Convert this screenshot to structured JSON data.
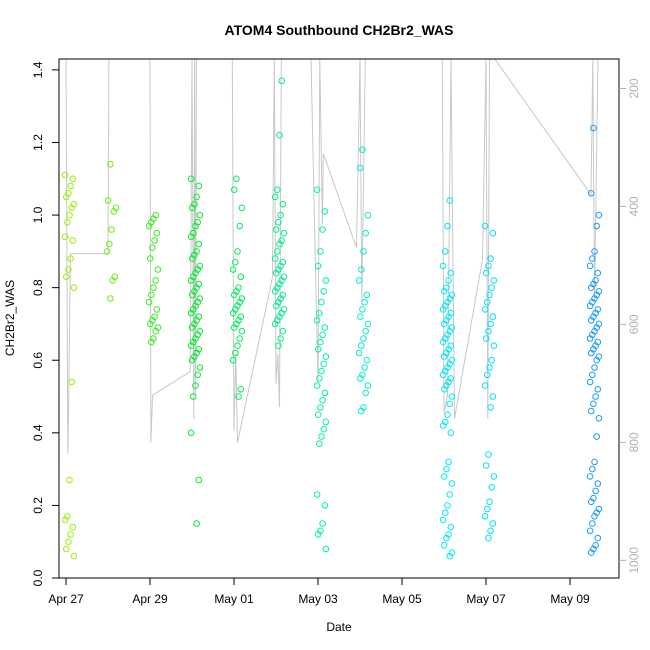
{
  "chart_data": {
    "type": "scatter",
    "title": "ATOM4 Southbound CH2Br2_WAS",
    "xlabel": "Date",
    "ylabel": "CH2Br2_WAS",
    "ylim": [
      0,
      1.43
    ],
    "xlim": [
      "2018-04-26T20:00",
      "2018-05-10T04:00"
    ],
    "x_ticks": [
      {
        "date": "2018-04-27",
        "label": "Apr 27"
      },
      {
        "date": "2018-04-29",
        "label": "Apr 29"
      },
      {
        "date": "2018-05-01",
        "label": "May 01"
      },
      {
        "date": "2018-05-03",
        "label": "May 03"
      },
      {
        "date": "2018-05-05",
        "label": "May 05"
      },
      {
        "date": "2018-05-07",
        "label": "May 07"
      },
      {
        "date": "2018-05-09",
        "label": "May 09"
      }
    ],
    "y_ticks": [
      "0.0",
      "0.2",
      "0.4",
      "0.6",
      "0.8",
      "1.0",
      "1.2",
      "1.4"
    ],
    "right_axis": {
      "meaning": "altitude profile (gray line)",
      "range_top": 150,
      "range_bottom": 1030,
      "ticks": [
        "200",
        "400",
        "600",
        "800",
        "1000"
      ]
    },
    "grid": false,
    "legend": "none",
    "colors": {
      "profile_line": "#c8c8c8",
      "point_gradient": [
        "#a6f000",
        "#00ee30",
        "#00f0c8",
        "#00e8ff",
        "#1f8cff"
      ]
    },
    "clusters": [
      {
        "date": "2018-04-27T02:00",
        "hour_offset": 0.0,
        "values": [
          1.11,
          1.1,
          1.08,
          1.06,
          1.05,
          1.03,
          1.02,
          1.0,
          0.98,
          0.94,
          0.93,
          0.88,
          0.85,
          0.83,
          0.8,
          0.54,
          0.27,
          0.17,
          0.16,
          0.14,
          0.12,
          0.1,
          0.08,
          0.06
        ]
      },
      {
        "date": "2018-04-28T02:00",
        "hour_offset": 0.0,
        "values": [
          1.14,
          1.04,
          1.02,
          1.01,
          0.96,
          0.92,
          0.9,
          0.83,
          0.82,
          0.77
        ]
      },
      {
        "date": "2018-04-29T02:00",
        "hour_offset": 0.0,
        "values": [
          1.0,
          0.99,
          0.98,
          0.97,
          0.95,
          0.93,
          0.91,
          0.88,
          0.85,
          0.82,
          0.8,
          0.78,
          0.76,
          0.74,
          0.72,
          0.71,
          0.7,
          0.69,
          0.68,
          0.66,
          0.65
        ]
      },
      {
        "date": "2018-04-30T02:00",
        "hour_offset": 0.0,
        "values": [
          1.1,
          1.08,
          1.05,
          1.03,
          1.02,
          1.0,
          0.98,
          0.97,
          0.95,
          0.94,
          0.92,
          0.9,
          0.89,
          0.88,
          0.86,
          0.85,
          0.84,
          0.83,
          0.82,
          0.81,
          0.8,
          0.79,
          0.78,
          0.77,
          0.76,
          0.75,
          0.74,
          0.73,
          0.72,
          0.71,
          0.7,
          0.69,
          0.68,
          0.67,
          0.66,
          0.65,
          0.64,
          0.63,
          0.62,
          0.61,
          0.6,
          0.58,
          0.56,
          0.53,
          0.5,
          0.4,
          0.27,
          0.15
        ]
      },
      {
        "date": "2018-05-01T02:00",
        "hour_offset": 0.0,
        "values": [
          1.1,
          1.07,
          1.02,
          0.97,
          0.9,
          0.87,
          0.85,
          0.83,
          0.8,
          0.79,
          0.78,
          0.77,
          0.76,
          0.75,
          0.74,
          0.73,
          0.72,
          0.71,
          0.7,
          0.69,
          0.68,
          0.66,
          0.64,
          0.62,
          0.6,
          0.52,
          0.5
        ]
      },
      {
        "date": "2018-05-02T02:00",
        "hour_offset": 0.0,
        "values": [
          1.37,
          1.22,
          1.07,
          1.05,
          1.03,
          1.0,
          0.98,
          0.96,
          0.95,
          0.93,
          0.92,
          0.9,
          0.88,
          0.87,
          0.86,
          0.85,
          0.84,
          0.83,
          0.82,
          0.81,
          0.8,
          0.79,
          0.78,
          0.77,
          0.76,
          0.75,
          0.74,
          0.73,
          0.72,
          0.71,
          0.7,
          0.68,
          0.66,
          0.64
        ]
      },
      {
        "date": "2018-05-03T02:00",
        "hour_offset": 0.0,
        "values": [
          1.07,
          1.01,
          0.96,
          0.9,
          0.86,
          0.82,
          0.79,
          0.76,
          0.73,
          0.71,
          0.69,
          0.67,
          0.65,
          0.63,
          0.61,
          0.59,
          0.57,
          0.55,
          0.53,
          0.51,
          0.49,
          0.47,
          0.45,
          0.43,
          0.41,
          0.39,
          0.37,
          0.23,
          0.2,
          0.15,
          0.13,
          0.12,
          0.08
        ]
      },
      {
        "date": "2018-05-04T02:00",
        "hour_offset": 0.0,
        "values": [
          1.18,
          1.13,
          1.0,
          0.95,
          0.9,
          0.85,
          0.82,
          0.78,
          0.76,
          0.74,
          0.72,
          0.7,
          0.68,
          0.66,
          0.64,
          0.62,
          0.6,
          0.58,
          0.56,
          0.55,
          0.53,
          0.51,
          0.47,
          0.46
        ]
      },
      {
        "date": "2018-05-06T02:00",
        "hour_offset": 0.0,
        "values": [
          1.04,
          0.97,
          0.9,
          0.86,
          0.84,
          0.82,
          0.8,
          0.79,
          0.78,
          0.77,
          0.76,
          0.75,
          0.74,
          0.73,
          0.72,
          0.71,
          0.7,
          0.69,
          0.68,
          0.67,
          0.66,
          0.65,
          0.64,
          0.63,
          0.62,
          0.61,
          0.6,
          0.59,
          0.58,
          0.57,
          0.56,
          0.55,
          0.54,
          0.53,
          0.52,
          0.5,
          0.48,
          0.45,
          0.43,
          0.42,
          0.4,
          0.32,
          0.3,
          0.28,
          0.26,
          0.23,
          0.2,
          0.18,
          0.16,
          0.14,
          0.12,
          0.11,
          0.09,
          0.07,
          0.06
        ]
      },
      {
        "date": "2018-05-07T02:00",
        "hour_offset": 0.0,
        "values": [
          0.97,
          0.95,
          0.88,
          0.86,
          0.84,
          0.82,
          0.8,
          0.78,
          0.76,
          0.74,
          0.72,
          0.7,
          0.68,
          0.66,
          0.64,
          0.6,
          0.58,
          0.56,
          0.53,
          0.5,
          0.47,
          0.34,
          0.31,
          0.28,
          0.25,
          0.21,
          0.19,
          0.17,
          0.15,
          0.13,
          0.11
        ]
      },
      {
        "date": "2018-05-09T14:00",
        "hour_offset": 0.0,
        "values": [
          1.24,
          1.06,
          1.0,
          0.97,
          0.9,
          0.88,
          0.86,
          0.84,
          0.82,
          0.81,
          0.8,
          0.79,
          0.78,
          0.77,
          0.76,
          0.75,
          0.74,
          0.73,
          0.72,
          0.71,
          0.7,
          0.69,
          0.68,
          0.67,
          0.66,
          0.65,
          0.64,
          0.63,
          0.62,
          0.61,
          0.6,
          0.58,
          0.56,
          0.54,
          0.52,
          0.5,
          0.48,
          0.46,
          0.44,
          0.39,
          0.32,
          0.3,
          0.28,
          0.26,
          0.24,
          0.22,
          0.21,
          0.19,
          0.18,
          0.17,
          0.15,
          0.13,
          0.11,
          0.09,
          0.08,
          0.07
        ]
      }
    ],
    "profile_path": [
      [
        "2018-04-27T00:00",
        150
      ],
      [
        "2018-04-27T01:00",
        820
      ],
      [
        "2018-04-27T01:30",
        745
      ],
      [
        "2018-04-27T02:30",
        480
      ],
      [
        "2018-04-28T00:00",
        480
      ],
      [
        "2018-04-28T00:30",
        150
      ],
      [
        "2018-04-29T00:00",
        150
      ],
      [
        "2018-04-29T00:30",
        800
      ],
      [
        "2018-04-29T01:30",
        720
      ],
      [
        "2018-04-29T23:00",
        680
      ],
      [
        "2018-04-30T00:00",
        150
      ],
      [
        "2018-04-30T01:00",
        760
      ],
      [
        "2018-04-30T01:30",
        150
      ],
      [
        "2018-04-30T02:00",
        720
      ],
      [
        "2018-04-30T02:30",
        150
      ],
      [
        "2018-04-30T23:00",
        150
      ],
      [
        "2018-05-01T00:00",
        780
      ],
      [
        "2018-05-01T01:00",
        650
      ],
      [
        "2018-05-01T02:00",
        800
      ],
      [
        "2018-05-01T22:00",
        520
      ],
      [
        "2018-05-01T23:00",
        150
      ],
      [
        "2018-05-02T00:00",
        700
      ],
      [
        "2018-05-02T01:00",
        650
      ],
      [
        "2018-05-02T02:00",
        740
      ],
      [
        "2018-05-02T03:00",
        150
      ],
      [
        "2018-05-02T20:00",
        150
      ],
      [
        "2018-05-03T00:00",
        700
      ],
      [
        "2018-05-03T01:00",
        150
      ],
      [
        "2018-05-03T02:30",
        430
      ],
      [
        "2018-05-03T03:00",
        310
      ],
      [
        "2018-05-03T22:00",
        470
      ],
      [
        "2018-05-04T00:00",
        150
      ],
      [
        "2018-05-04T01:00",
        560
      ],
      [
        "2018-05-04T03:00",
        150
      ],
      [
        "2018-05-05T23:00",
        150
      ],
      [
        "2018-05-06T00:00",
        750
      ],
      [
        "2018-05-06T02:00",
        720
      ],
      [
        "2018-05-06T04:00",
        150
      ],
      [
        "2018-05-06T06:00",
        760
      ],
      [
        "2018-05-06T22:00",
        490
      ],
      [
        "2018-05-07T00:00",
        150
      ],
      [
        "2018-05-07T01:00",
        760
      ],
      [
        "2018-05-07T02:00",
        150
      ],
      [
        "2018-05-07T05:00",
        150
      ],
      [
        "2018-05-09T12:00",
        380
      ],
      [
        "2018-05-09T13:00",
        150
      ],
      [
        "2018-05-09T14:00",
        560
      ],
      [
        "2018-05-09T16:00",
        150
      ]
    ]
  }
}
